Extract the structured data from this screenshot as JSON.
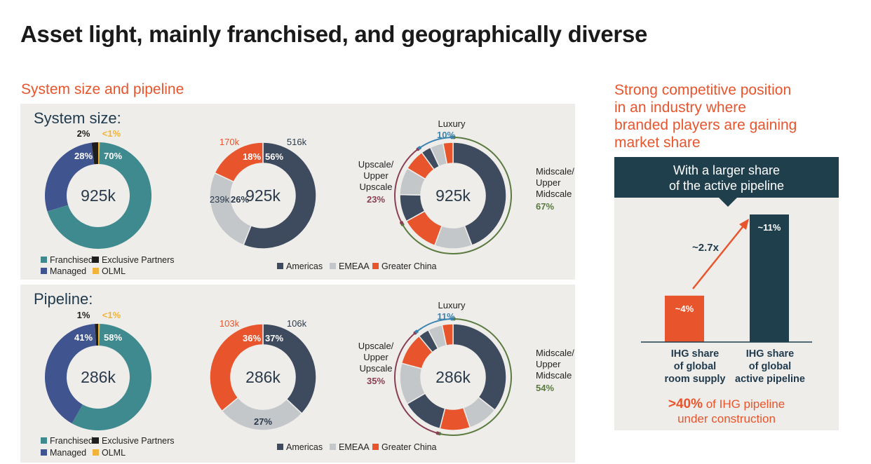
{
  "title": "Asset light, mainly franchised, and geographically diverse",
  "left_heading": "System size and pipeline",
  "right_heading": [
    "Strong competitive position",
    "in an industry where",
    "branded players are gaining",
    "market share"
  ],
  "colors": {
    "franchised": "#3f8a8f",
    "managed": "#40558f",
    "exclusive_partners": "#1e1e1e",
    "olml": "#f0b43c",
    "americas": "#3e4b5e",
    "emeaa": "#c4c7ca",
    "greater_china": "#e8552d",
    "luxury_accent": "#3b83b0",
    "upscale_accent": "#8a3f55",
    "midscale_accent": "#5a7a40",
    "navy": "#1f3f4d",
    "orange": "#e8552d",
    "panel_bg": "#efedea"
  },
  "legends": {
    "ownership": [
      "Franchised",
      "Exclusive Partners",
      "Managed",
      "OLML"
    ],
    "region": [
      "Americas",
      "EMEAA",
      "Greater China"
    ]
  },
  "chart_data": [
    {
      "type": "pie",
      "panel": "System size:",
      "center_label": "925k",
      "slices": [
        {
          "name": "Franchised",
          "value": 70,
          "label": "70%"
        },
        {
          "name": "Managed",
          "value": 28,
          "label": "28%"
        },
        {
          "name": "Exclusive Partners",
          "value": 2,
          "label": "2%"
        },
        {
          "name": "OLML",
          "value": 0.5,
          "label": "<1%"
        }
      ]
    },
    {
      "type": "pie",
      "panel": "System size:",
      "center_label": "925k",
      "slices": [
        {
          "name": "Americas",
          "value": 56,
          "label": "56%",
          "count": "516k"
        },
        {
          "name": "EMEAA",
          "value": 26,
          "label": "26%",
          "count": "239k"
        },
        {
          "name": "Greater China",
          "value": 18,
          "label": "18%",
          "count": "170k"
        }
      ]
    },
    {
      "type": "pie",
      "panel": "System size:",
      "center_label": "925k",
      "groups": [
        {
          "name": "Luxury",
          "value": 10,
          "label": "10%"
        },
        {
          "name": "Upscale/ Upper Upscale",
          "value": 23,
          "label": "23%"
        },
        {
          "name": "Midscale/ Upper Midscale",
          "value": 67,
          "label": "67%"
        }
      ]
    },
    {
      "type": "pie",
      "panel": "Pipeline:",
      "center_label": "286k",
      "slices": [
        {
          "name": "Franchised",
          "value": 58,
          "label": "58%"
        },
        {
          "name": "Managed",
          "value": 41,
          "label": "41%"
        },
        {
          "name": "Exclusive Partners",
          "value": 1,
          "label": "1%"
        },
        {
          "name": "OLML",
          "value": 0.5,
          "label": "<1%"
        }
      ]
    },
    {
      "type": "pie",
      "panel": "Pipeline:",
      "center_label": "286k",
      "slices": [
        {
          "name": "Americas",
          "value": 37,
          "label": "37%",
          "count": "106k"
        },
        {
          "name": "EMEAA",
          "value": 27,
          "label": "27%"
        },
        {
          "name": "Greater China",
          "value": 36,
          "label": "36%",
          "count": "103k"
        }
      ]
    },
    {
      "type": "pie",
      "panel": "Pipeline:",
      "center_label": "286k",
      "groups": [
        {
          "name": "Luxury",
          "value": 11,
          "label": "11%"
        },
        {
          "name": "Upscale/ Upper Upscale",
          "value": 35,
          "label": "35%"
        },
        {
          "name": "Midscale/ Upper Midscale",
          "value": 54,
          "label": "54%"
        }
      ]
    },
    {
      "type": "bar",
      "categories": [
        "IHG share of global room supply",
        "IHG share of global active pipeline"
      ],
      "values": [
        4,
        11
      ],
      "value_labels": [
        "~4%",
        "~11%"
      ],
      "annotation": "~2.7x"
    }
  ],
  "insight": {
    "banner": [
      "With a larger share",
      "of the active pipeline"
    ],
    "bar_labels": [
      [
        "IHG share",
        "of global",
        "room supply"
      ],
      [
        "IHG share",
        "of global",
        "active pipeline"
      ]
    ],
    "footnote_highlight": ">40%",
    "footnote_text_1": " of IHG pipeline",
    "footnote_text_2": "under construction"
  }
}
